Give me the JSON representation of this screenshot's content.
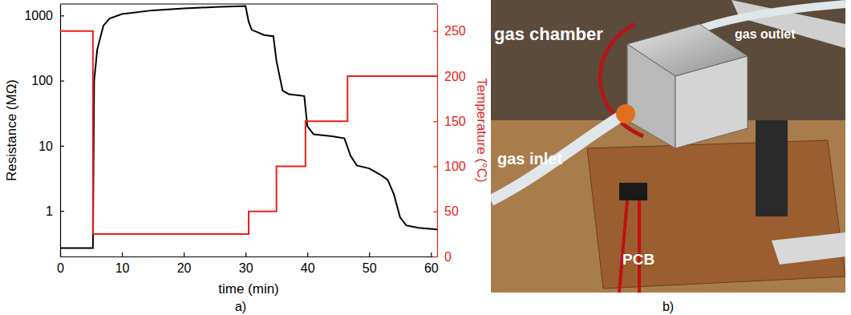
{
  "chart_data": {
    "type": "line",
    "log": "y",
    "grid": false,
    "x_label": "time (min)",
    "y_label": "Resistance (MΩ)",
    "y2_label": "Temperature (°C)",
    "xlim": [
      0,
      61
    ],
    "xticks": [
      0,
      10,
      20,
      30,
      40,
      50,
      60
    ],
    "ylim": [
      0.2,
      1500
    ],
    "yticks": [
      1,
      10,
      100,
      1000
    ],
    "y2lim": [
      0,
      280
    ],
    "y2ticks": [
      0,
      50,
      100,
      150,
      200,
      250
    ],
    "series": [
      {
        "name": "Resistance",
        "color": "#000000",
        "line_style": "solid",
        "x": [
          0,
          5.3,
          5.5,
          6,
          7,
          8,
          10,
          15,
          20,
          25,
          30,
          30.5,
          31,
          32,
          33,
          34.5,
          35,
          36,
          37,
          39.5,
          40,
          41,
          44,
          46,
          47,
          48,
          50,
          52,
          53,
          54,
          55,
          56,
          58,
          61
        ],
        "values": [
          0.27,
          0.27,
          100,
          300,
          700,
          900,
          1050,
          1200,
          1280,
          1350,
          1400,
          800,
          600,
          550,
          500,
          480,
          200,
          70,
          62,
          58,
          20,
          15,
          14,
          13,
          7,
          5,
          4.5,
          3.5,
          3,
          1.8,
          0.8,
          0.6,
          0.55,
          0.52
        ]
      },
      {
        "name": "Temperature",
        "color": "#e8201a",
        "line_style": "step",
        "axis": "y2",
        "x": [
          0,
          5.3,
          30.5,
          35,
          39.7,
          46.5,
          61
        ],
        "values": [
          250,
          25,
          50,
          100,
          150,
          200,
          200
        ]
      }
    ]
  },
  "panel_labels": [
    "a)",
    "b)"
  ],
  "photo": {
    "labels": [
      "gas chamber",
      "gas outlet",
      "gas inlet",
      "PCB"
    ]
  }
}
